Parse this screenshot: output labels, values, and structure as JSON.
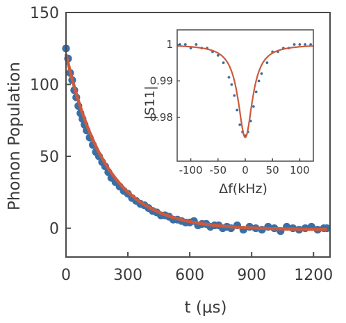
{
  "chart_data": [
    {
      "type": "scatter",
      "title": "",
      "xlabel": "t (µs)",
      "ylabel": "Phonon Population",
      "xlim": [
        0,
        1280
      ],
      "ylim": [
        -20,
        150
      ],
      "xticks": [
        0,
        300,
        600,
        900,
        1200
      ],
      "yticks": [
        0,
        50,
        100,
        150
      ],
      "xtick_labels": [
        "0",
        "300",
        "600",
        "900",
        "1200"
      ],
      "ytick_labels": [
        "0",
        "50",
        "100",
        "150"
      ],
      "grid": false,
      "series": [
        {
          "kind": "scatter",
          "color": "#3a6fa6",
          "x": [
            0,
            10,
            20,
            30,
            40,
            50,
            60,
            70,
            80,
            90,
            100,
            115,
            130,
            145,
            160,
            175,
            190,
            205,
            220,
            240,
            260,
            280,
            300,
            320,
            340,
            360,
            380,
            400,
            420,
            440,
            460,
            480,
            500,
            520,
            540,
            560,
            580,
            600,
            620,
            640,
            660,
            680,
            700,
            720,
            740,
            760,
            780,
            800,
            830,
            860,
            890,
            920,
            950,
            980,
            1010,
            1040,
            1070,
            1100,
            1130,
            1160,
            1190,
            1220,
            1250,
            1265
          ],
          "y": [
            125,
            118,
            108,
            103,
            96,
            91,
            85,
            80,
            76,
            72,
            68,
            63,
            58,
            53,
            50,
            46,
            43,
            39,
            35,
            32,
            29,
            26,
            24,
            21,
            19,
            17,
            16,
            14,
            12,
            11,
            9,
            9,
            8,
            6,
            6,
            5,
            4,
            4,
            5,
            2,
            3,
            3,
            1,
            2,
            2,
            0,
            1,
            0,
            2,
            -1,
            1,
            0,
            -1,
            1,
            0,
            -2,
            1,
            0,
            -1,
            0,
            1,
            -1,
            0,
            0
          ]
        },
        {
          "kind": "fit",
          "color": "#cc5a3c",
          "model": "A*exp(-t/tau)+C",
          "params": {
            "A": 122,
            "tau": 195,
            "C": -1
          }
        }
      ]
    },
    {
      "type": "scatter",
      "title": "",
      "xlabel": "Δf(kHz)",
      "ylabel": "|S11|",
      "xlim": [
        -125,
        125
      ],
      "ylim": [
        0.968,
        1.004
      ],
      "xticks": [
        -100,
        -50,
        0,
        50,
        100
      ],
      "yticks": [
        0.98,
        0.99,
        1
      ],
      "xtick_labels": [
        "-100",
        "-50",
        "0",
        "50",
        "100"
      ],
      "ytick_labels": [
        "0.98",
        "0.99",
        "1"
      ],
      "grid": false,
      "series": [
        {
          "kind": "scatter",
          "color": "#3a6fa6",
          "x": [
            -120,
            -110,
            -100,
            -90,
            -80,
            -70,
            -60,
            -50,
            -40,
            -30,
            -25,
            -20,
            -15,
            -10,
            -5,
            0,
            5,
            10,
            15,
            20,
            25,
            30,
            40,
            50,
            60,
            70,
            80,
            90,
            100,
            110,
            120
          ],
          "y": [
            1.0,
            1.0,
            0.999,
            1.0,
            0.999,
            0.999,
            0.998,
            0.997,
            0.995,
            0.991,
            0.989,
            0.986,
            0.982,
            0.978,
            0.976,
            0.975,
            0.976,
            0.979,
            0.983,
            0.987,
            0.99,
            0.992,
            0.995,
            0.998,
            0.998,
            0.999,
            0.999,
            1.0,
            1.0,
            1.0,
            1.0
          ]
        },
        {
          "kind": "fit",
          "color": "#cc5a3c",
          "model": "1 - D*g^2/(x^2+g^2)",
          "params": {
            "D": 0.0255,
            "g": 16
          }
        }
      ]
    }
  ]
}
